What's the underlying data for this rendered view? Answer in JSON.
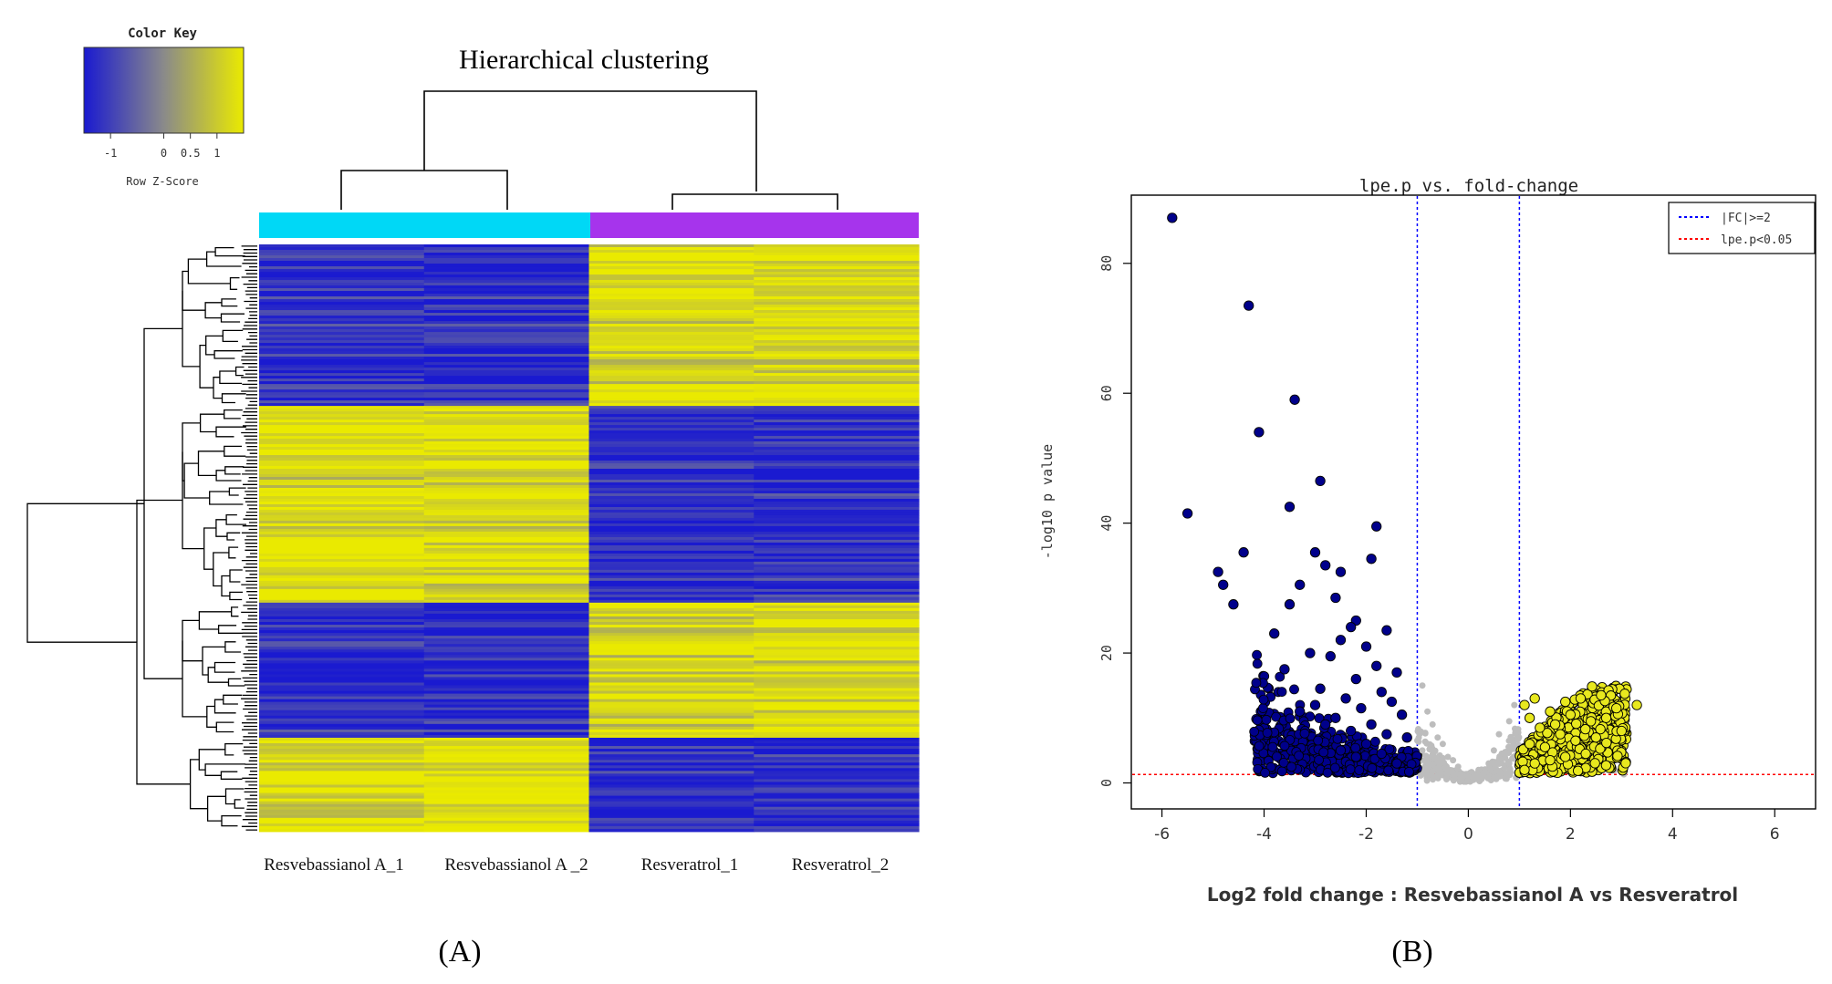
{
  "colors": {
    "low": "#1a1ad0",
    "mid": "#8a8a8a",
    "high": "#eaea00",
    "group_a": "#00d8f6",
    "group_b": "#a634ec",
    "down_points": "#00008b",
    "up_points": "#e8e81e",
    "ns_points": "#bdbdbd",
    "fc_line": "#0000ff",
    "p_line": "#ff0000"
  },
  "panel_a": {
    "label": "(A)",
    "title": "Hierarchical clustering",
    "color_key": {
      "title": "Color Key",
      "ticks": [
        "-1",
        "0",
        "0.5",
        "1"
      ],
      "xlabel": "Row Z-Score"
    },
    "samples": [
      "Resvebassianol A_1",
      "Resvebassianol A _2",
      "Resveratrol_1",
      "Resveratrol_2"
    ]
  },
  "panel_b": {
    "label": "(B)",
    "title": "lpe.p vs. fold-change",
    "legend": [
      {
        "label": "|FC|>=2",
        "color": "#0000ff"
      },
      {
        "label": "lpe.p<0.05",
        "color": "#ff0000"
      }
    ]
  },
  "chart_data": [
    {
      "type": "heatmap",
      "title": "Hierarchical clustering",
      "xlabel": "",
      "ylabel": "",
      "scale": {
        "name": "Row Z-Score",
        "range": [
          -1.5,
          1.5
        ],
        "ticks": [
          -1,
          0,
          0.5,
          1
        ]
      },
      "columns": [
        "Resvebassianol A_1",
        "Resvebassianol A _2",
        "Resveratrol_1",
        "Resveratrol_2"
      ],
      "column_groups": [
        "Resvebassianol A",
        "Resvebassianol A",
        "Resveratrol",
        "Resveratrol"
      ],
      "row_blocks": [
        {
          "fraction": 0.275,
          "pattern": [
            -1,
            -1,
            1,
            1
          ]
        },
        {
          "fraction": 0.335,
          "pattern": [
            1,
            1,
            -1,
            -1
          ]
        },
        {
          "fraction": 0.23,
          "pattern": [
            -1,
            -1,
            1,
            1
          ]
        },
        {
          "fraction": 0.16,
          "pattern": [
            1,
            1,
            -1,
            -1
          ]
        }
      ]
    },
    {
      "type": "scatter",
      "title": "lpe.p vs. fold-change",
      "xlabel": "Log2 fold change : Resvebassianol A vs Resveratrol",
      "ylabel": "-log10 p value",
      "xlim": [
        -6.6,
        6.8
      ],
      "ylim": [
        -4,
        90.5
      ],
      "xticks": [
        -6,
        -4,
        -2,
        0,
        2,
        4,
        6
      ],
      "yticks": [
        0,
        20,
        40,
        60,
        80
      ],
      "fc_threshold_lines": [
        -1,
        1
      ],
      "p_threshold_line": 1.3,
      "series": [
        {
          "name": "down",
          "color": "#00008b",
          "x": [
            -5.8,
            -4.3,
            -3.4,
            -4.1,
            -2.9,
            -5.5,
            -3.5,
            -1.8,
            -4.4,
            -3.0,
            -1.9,
            -4.9,
            -2.8,
            -3.3,
            -2.5,
            -3.5,
            -4.8,
            -2.6,
            -4.6,
            -2.2,
            -3.8,
            -2.3,
            -1.6,
            -2.5,
            -3.1,
            -2.0,
            -2.7,
            -1.8,
            -3.6,
            -2.2,
            -1.4,
            -2.9,
            -2.4,
            -1.7,
            -3.0,
            -2.1,
            -1.5,
            -2.6,
            -1.9,
            -1.3,
            -2.3,
            -1.6,
            -2.8,
            -2.0,
            -1.2,
            -2.5,
            -1.7,
            -3.3,
            -2.2,
            -1.4
          ],
          "y": [
            87,
            73.5,
            59,
            54,
            46.5,
            41.5,
            42.5,
            39.5,
            35.5,
            35.5,
            34.5,
            32.5,
            33.5,
            30.5,
            32.5,
            27.5,
            30.5,
            28.5,
            27.5,
            25,
            23,
            24,
            23.5,
            22,
            20,
            21,
            19.5,
            18,
            17.5,
            16,
            17,
            14.5,
            13,
            14,
            12,
            11.5,
            12.5,
            10,
            9,
            10.5,
            8,
            7.5,
            9,
            6,
            7,
            5,
            4.5,
            11,
            4,
            3
          ]
        },
        {
          "name": "up",
          "color": "#e8e81e",
          "x": [
            3.3,
            2.9,
            2.6,
            2.2,
            1.9,
            1.6,
            1.3,
            1.1,
            2.7,
            2.4,
            2.0,
            1.7,
            1.4,
            1.2,
            2.5,
            2.1,
            1.8,
            1.5,
            1.2,
            3.0,
            2.3,
            1.9,
            1.6,
            1.3,
            1.1
          ],
          "y": [
            12,
            11.5,
            13.5,
            13,
            12.5,
            11,
            13,
            12,
            10,
            9.5,
            10.5,
            9,
            8.5,
            10,
            7,
            6.5,
            7.5,
            5.5,
            6,
            8,
            4.5,
            4,
            3.5,
            3,
            2
          ]
        },
        {
          "name": "ns",
          "color": "#bdbdbd",
          "x": [
            -0.9,
            -0.7,
            -0.5,
            -0.3,
            0.2,
            0.5,
            0.8,
            -0.8,
            -0.4,
            0.0,
            0.4,
            0.9,
            -0.6,
            0.6,
            0.1,
            -0.2,
            0.3,
            0.7,
            -0.9,
            0.8
          ],
          "y": [
            15,
            9,
            6,
            3.5,
            2,
            5,
            9.5,
            11,
            4,
            1,
            3,
            12,
            7,
            7.5,
            0.5,
            2.5,
            1.5,
            4.5,
            5,
            3
          ]
        }
      ]
    }
  ]
}
